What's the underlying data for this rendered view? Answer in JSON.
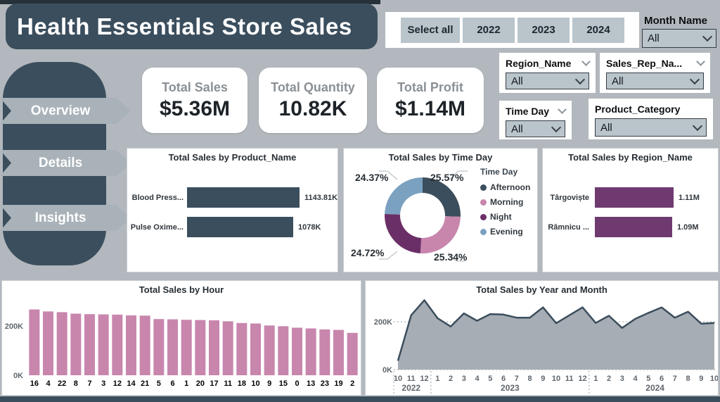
{
  "page": {
    "title": "Health Essentials Store Sales"
  },
  "year_slicer": {
    "options": [
      "Select all",
      "2022",
      "2023",
      "2024"
    ]
  },
  "month_filter": {
    "label": "Month Name",
    "value": "All"
  },
  "filters": {
    "region": {
      "label": "Region_Name",
      "value": "All"
    },
    "sales_rep": {
      "label": "Sales_Rep_Na...",
      "value": "All"
    },
    "time_day": {
      "label": "Time Day",
      "value": "All"
    },
    "product_category": {
      "label": "Product_Category",
      "value": "All"
    }
  },
  "nav": {
    "items": [
      {
        "label": "Overview"
      },
      {
        "label": "Details"
      },
      {
        "label": "Insights"
      }
    ]
  },
  "kpis": [
    {
      "label": "Total Sales",
      "value": "$5.36M"
    },
    {
      "label": "Total Quantity",
      "value": "10.82K"
    },
    {
      "label": "Total Profit",
      "value": "$1.14M"
    }
  ],
  "colors": {
    "dark_slate": "#3B4E5D",
    "pink": "#C886AD",
    "purple": "#6E3A70",
    "night_purple": "#6B2F67",
    "steel_blue": "#7BA1C0",
    "page_bg": "#B2B8BD",
    "slicer_fill": "#B9C4CB",
    "nav_fill": "#A9B2B8"
  },
  "chart_data": [
    {
      "id": "product_sales",
      "type": "bar",
      "orientation": "horizontal",
      "title": "Total Sales by Product_Name",
      "categories": [
        "Blood Press...",
        "Pulse Oxime..."
      ],
      "values": [
        1143.81,
        1078
      ],
      "value_labels": [
        "1143.81K",
        "1078K"
      ],
      "unit": "K",
      "bar_color": "#3B4E5D"
    },
    {
      "id": "timeday_share",
      "type": "pie",
      "title": "Total Sales by Time Day",
      "legend_title": "Time Day",
      "legend_position": "right",
      "segments": [
        {
          "label": "Afternoon",
          "pct": 25.57,
          "pct_label": "25.57%",
          "color": "#3B4E5D"
        },
        {
          "label": "Morning",
          "pct": 25.34,
          "pct_label": "25.34%",
          "color": "#C886AD"
        },
        {
          "label": "Night",
          "pct": 24.72,
          "pct_label": "24.72%",
          "color": "#6B2F67"
        },
        {
          "label": "Evening",
          "pct": 24.37,
          "pct_label": "24.37%",
          "color": "#7BA1C0"
        }
      ]
    },
    {
      "id": "region_sales",
      "type": "bar",
      "orientation": "horizontal",
      "title": "Total Sales by Region_Name",
      "categories": [
        "Târgoviște",
        "Râmnicu ..."
      ],
      "values": [
        1.11,
        1.09
      ],
      "value_labels": [
        "1.11M",
        "1.09M"
      ],
      "unit": "M",
      "bar_color": "#6E3A70"
    },
    {
      "id": "hour_sales",
      "type": "bar",
      "title": "Total Sales by Hour",
      "categories": [
        "16",
        "4",
        "22",
        "8",
        "7",
        "3",
        "12",
        "14",
        "21",
        "5",
        "6",
        "1",
        "20",
        "17",
        "11",
        "18",
        "10",
        "9",
        "15",
        "0",
        "13",
        "23",
        "19",
        "2"
      ],
      "values": [
        267,
        259,
        256,
        250,
        248,
        247,
        246,
        243,
        242,
        228,
        227,
        225,
        224,
        223,
        219,
        212,
        210,
        202,
        199,
        193,
        190,
        186,
        184,
        172
      ],
      "unit": "K",
      "ytick_labels": [
        "0K",
        "200K"
      ],
      "yticks": [
        0,
        200
      ],
      "ylim": [
        0,
        280
      ],
      "bar_color": "#C886AD"
    },
    {
      "id": "monthly_sales",
      "type": "area",
      "title": "Total Sales by Year and Month",
      "x": [
        "10",
        "11",
        "12",
        "1",
        "2",
        "3",
        "4",
        "5",
        "6",
        "7",
        "8",
        "9",
        "10",
        "11",
        "12",
        "1",
        "2",
        "3",
        "4",
        "5",
        "6",
        "7",
        "8",
        "9",
        "10"
      ],
      "year_groups": [
        {
          "year": "2022",
          "months": 3
        },
        {
          "year": "2023",
          "months": 12
        },
        {
          "year": "2024",
          "months": 10
        }
      ],
      "values": [
        37,
        227,
        290,
        215,
        180,
        235,
        204,
        232,
        230,
        217,
        217,
        260,
        194,
        227,
        260,
        195,
        225,
        174,
        212,
        237,
        260,
        217,
        242,
        192,
        195
      ],
      "unit": "K",
      "ytick_labels": [
        "0K",
        "200K"
      ],
      "yticks": [
        0,
        200
      ],
      "ylim": [
        0,
        300
      ],
      "grid": "dotted-200K",
      "line_color": "#3B4E5D",
      "fill_color": "#A7ADB4"
    }
  ]
}
